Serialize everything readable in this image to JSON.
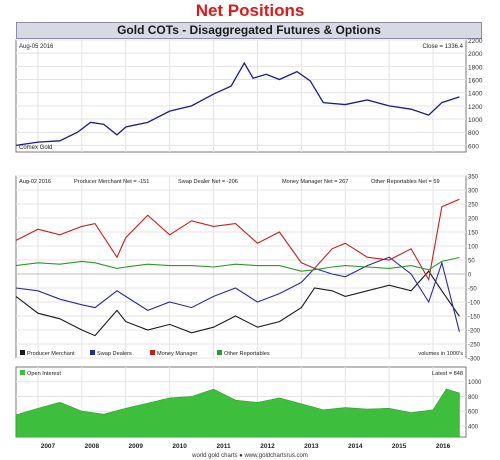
{
  "header": {
    "headline": "Net Positions",
    "title": "Gold COTs - Disaggregated Futures & Options"
  },
  "colors": {
    "headline": "#e01818",
    "gold_line": "#1c1c8c",
    "producer": "#1a1a1a",
    "swap": "#2a2aa0",
    "money": "#c81e1e",
    "other": "#2a9a2a",
    "open_interest": "#3dbf3d",
    "grid": "#e3e3e3"
  },
  "footer": {
    "credit": "world gold charts ● www.goldchartsrus.com"
  },
  "chart_data": [
    {
      "type": "line",
      "title": "Gold COTs - Disaggregated Futures & Options",
      "date_label": "Aug-05  2016",
      "latest_label": "Close = 1336.4",
      "source_label": "Comex Gold",
      "ylim": [
        500,
        2200
      ],
      "yticks": [
        600,
        800,
        1000,
        1200,
        1400,
        1600,
        1800,
        2000,
        2200
      ],
      "x": [
        2006.5,
        2007.0,
        2007.5,
        2007.9,
        2008.2,
        2008.5,
        2008.8,
        2009.0,
        2009.5,
        2010.0,
        2010.5,
        2011.0,
        2011.4,
        2011.7,
        2011.9,
        2012.2,
        2012.5,
        2012.9,
        2013.2,
        2013.5,
        2014.0,
        2014.5,
        2015.0,
        2015.5,
        2015.9,
        2016.2,
        2016.6
      ],
      "series": [
        {
          "values": [
            600,
            650,
            670,
            800,
            950,
            920,
            760,
            880,
            950,
            1120,
            1200,
            1380,
            1500,
            1850,
            1620,
            1680,
            1600,
            1720,
            1580,
            1250,
            1220,
            1290,
            1200,
            1150,
            1060,
            1250,
            1336
          ]
        }
      ]
    },
    {
      "type": "line",
      "date_label": "Aug-02  2016",
      "ylim": [
        -300,
        350
      ],
      "yticks": [
        -300,
        -250,
        -200,
        -150,
        -100,
        -50,
        0,
        50,
        100,
        150,
        200,
        250,
        300,
        350
      ],
      "readings": [
        "Producer Merchant Net = -151",
        "Swap Dealer Net = -206",
        "Money Manager Net = 267",
        "Other Reportables Net = 59"
      ],
      "units_note": "volumes in 1000's",
      "x": [
        2006.5,
        2007.0,
        2007.5,
        2008.0,
        2008.3,
        2008.8,
        2009.0,
        2009.5,
        2010.0,
        2010.5,
        2011.0,
        2011.5,
        2012.0,
        2012.5,
        2013.0,
        2013.3,
        2013.7,
        2014.0,
        2014.5,
        2015.0,
        2015.5,
        2015.9,
        2016.2,
        2016.6
      ],
      "series": [
        {
          "name": "Producer Merchant",
          "values": [
            -80,
            -140,
            -160,
            -200,
            -220,
            -130,
            -170,
            -200,
            -180,
            -210,
            -190,
            -150,
            -190,
            -170,
            -120,
            -50,
            -60,
            -80,
            -60,
            -40,
            -60,
            10,
            -60,
            -151
          ]
        },
        {
          "name": "Swap Dealers",
          "values": [
            -50,
            -60,
            -90,
            -110,
            -120,
            -60,
            -80,
            -130,
            -100,
            -120,
            -80,
            -50,
            -100,
            -70,
            -30,
            20,
            0,
            -10,
            30,
            60,
            0,
            -100,
            40,
            -206
          ]
        },
        {
          "name": "Money Manager",
          "values": [
            120,
            160,
            140,
            170,
            180,
            60,
            130,
            210,
            140,
            190,
            170,
            180,
            110,
            150,
            40,
            20,
            90,
            110,
            60,
            50,
            90,
            -20,
            240,
            267
          ]
        },
        {
          "name": "Other Reportables",
          "values": [
            30,
            40,
            35,
            45,
            40,
            20,
            25,
            35,
            30,
            30,
            25,
            35,
            30,
            30,
            10,
            15,
            25,
            30,
            25,
            20,
            30,
            15,
            45,
            59
          ]
        }
      ]
    },
    {
      "type": "bar",
      "legend": [
        "Open Interest"
      ],
      "latest_label": "Latest = 848",
      "ylim": [
        250,
        1200
      ],
      "yticks": [
        400,
        600,
        800,
        1000
      ],
      "x": [
        2006.5,
        2007.0,
        2007.5,
        2008.0,
        2008.5,
        2009.0,
        2009.5,
        2010.0,
        2010.5,
        2011.0,
        2011.5,
        2012.0,
        2012.5,
        2013.0,
        2013.5,
        2014.0,
        2014.5,
        2015.0,
        2015.5,
        2016.0,
        2016.3,
        2016.6
      ],
      "series": [
        {
          "name": "Open Interest",
          "values": [
            550,
            640,
            720,
            600,
            560,
            640,
            710,
            780,
            800,
            900,
            750,
            720,
            780,
            700,
            620,
            650,
            630,
            640,
            580,
            620,
            900,
            848
          ]
        }
      ]
    }
  ],
  "xaxis": {
    "min": 2006.5,
    "max": 2016.75,
    "labels": [
      "2007",
      "2008",
      "2009",
      "2010",
      "2011",
      "2012",
      "2013",
      "2014",
      "2015",
      "2016"
    ]
  }
}
